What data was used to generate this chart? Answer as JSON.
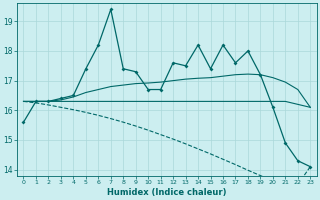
{
  "xlabel": "Humidex (Indice chaleur)",
  "x": [
    0,
    1,
    2,
    3,
    4,
    5,
    6,
    7,
    8,
    9,
    10,
    11,
    12,
    13,
    14,
    15,
    16,
    17,
    18,
    19,
    20,
    21,
    22,
    23
  ],
  "main_line": [
    15.6,
    16.3,
    16.3,
    16.4,
    16.5,
    17.4,
    18.2,
    19.4,
    17.4,
    17.3,
    16.7,
    16.7,
    17.6,
    17.5,
    18.2,
    17.4,
    18.2,
    17.6,
    18.0,
    17.2,
    16.1,
    14.9,
    14.3,
    14.1
  ],
  "trend_line": [
    16.3,
    16.3,
    16.3,
    16.35,
    16.45,
    16.6,
    16.7,
    16.8,
    16.85,
    16.9,
    16.92,
    16.95,
    17.0,
    17.05,
    17.08,
    17.1,
    17.15,
    17.2,
    17.22,
    17.2,
    17.1,
    16.95,
    16.7,
    16.1
  ],
  "lower_bound": [
    16.3,
    16.25,
    16.18,
    16.1,
    16.02,
    15.93,
    15.83,
    15.72,
    15.6,
    15.47,
    15.33,
    15.18,
    15.03,
    14.87,
    14.7,
    14.53,
    14.35,
    14.17,
    13.98,
    13.8,
    13.62,
    13.45,
    13.5,
    14.1
  ],
  "upper_bound": [
    16.3,
    16.3,
    16.3,
    16.3,
    16.3,
    16.3,
    16.3,
    16.3,
    16.3,
    16.3,
    16.3,
    16.3,
    16.3,
    16.3,
    16.3,
    16.3,
    16.3,
    16.3,
    16.3,
    16.3,
    16.3,
    16.3,
    16.2,
    16.1
  ],
  "bg_color": "#cceef0",
  "grid_color": "#aad8da",
  "line_color": "#006868",
  "ylim": [
    13.8,
    19.6
  ],
  "yticks": [
    14,
    15,
    16,
    17,
    18,
    19
  ],
  "xlim": [
    -0.5,
    23.5
  ],
  "figwidth": 3.2,
  "figheight": 2.0,
  "dpi": 100
}
